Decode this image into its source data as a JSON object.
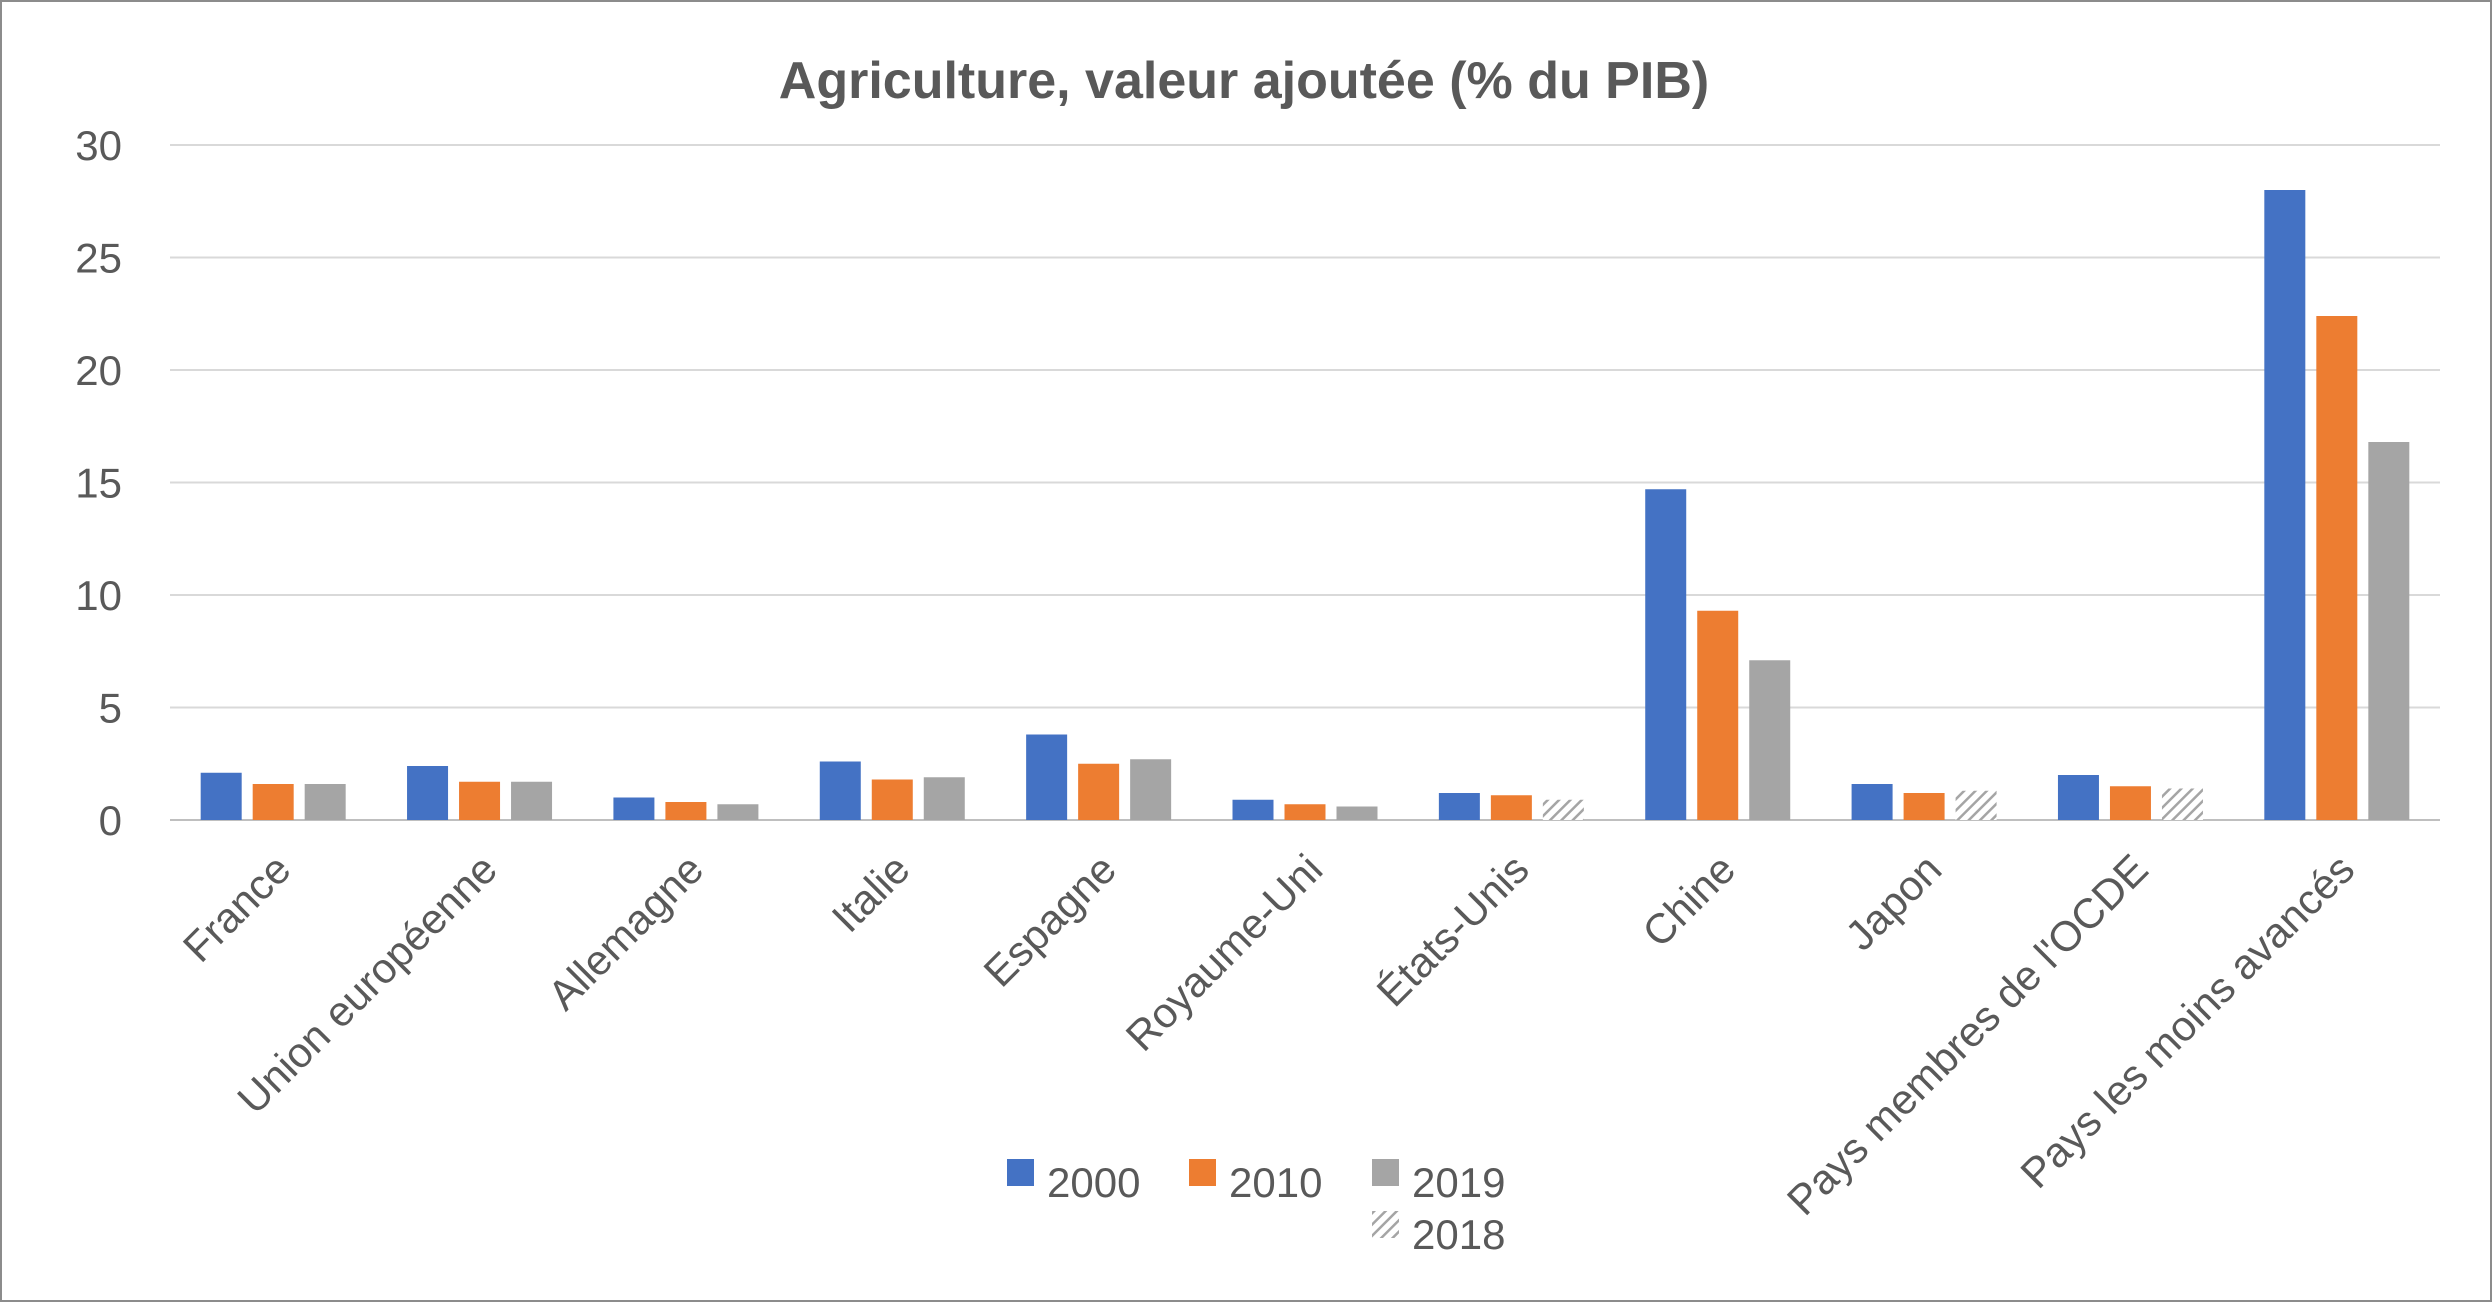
{
  "chart_data": {
    "type": "bar",
    "title": "Agriculture, valeur ajoutée (% du PIB)",
    "xlabel": "",
    "ylabel": "",
    "ylim": [
      0,
      30
    ],
    "yticks": [
      "0",
      "5",
      "10",
      "15",
      "20",
      "25",
      "30"
    ],
    "grid": "horizontal",
    "legend_position": "bottom",
    "categories": [
      "France",
      "Union européenne",
      "Allemagne",
      "Italie",
      "Espagne",
      "Royaume-Uni",
      "États-Unis",
      "Chine",
      "Japon",
      "Pays membres de l'OCDE",
      "Pays les moins avancés"
    ],
    "series": [
      {
        "name": "2000",
        "color": "#4472c4",
        "values": [
          2.1,
          2.4,
          1.0,
          2.6,
          3.8,
          0.9,
          1.2,
          14.7,
          1.6,
          2.0,
          28.0
        ]
      },
      {
        "name": "2010",
        "color": "#ed7d31",
        "values": [
          1.6,
          1.7,
          0.8,
          1.8,
          2.5,
          0.7,
          1.1,
          9.3,
          1.2,
          1.5,
          22.4
        ]
      },
      {
        "name": "2019",
        "color": "#a5a5a5",
        "values": [
          1.6,
          1.7,
          0.7,
          1.9,
          2.7,
          0.6,
          null,
          7.1,
          null,
          null,
          16.8
        ]
      },
      {
        "name": "2018",
        "color": "#a5a5a5",
        "pattern": "diagonal-hatch",
        "values": [
          null,
          null,
          null,
          null,
          null,
          null,
          0.9,
          null,
          1.3,
          1.4,
          null
        ]
      }
    ]
  }
}
